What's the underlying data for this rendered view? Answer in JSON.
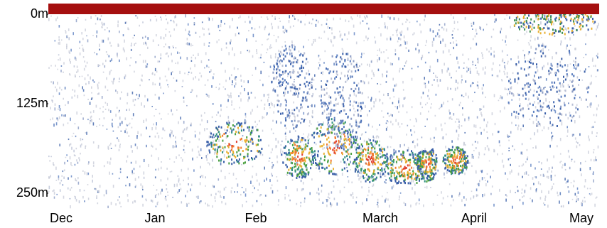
{
  "chart_data": {
    "type": "echogram",
    "categories": [
      "Dec",
      "Jan",
      "Feb",
      "March",
      "April",
      "May"
    ],
    "ylim": [
      0,
      250
    ],
    "yticks": [
      {
        "value": 0,
        "label": "0m"
      },
      {
        "value": 125,
        "label": "125m"
      },
      {
        "value": 250,
        "label": "250m"
      }
    ]
  }
}
